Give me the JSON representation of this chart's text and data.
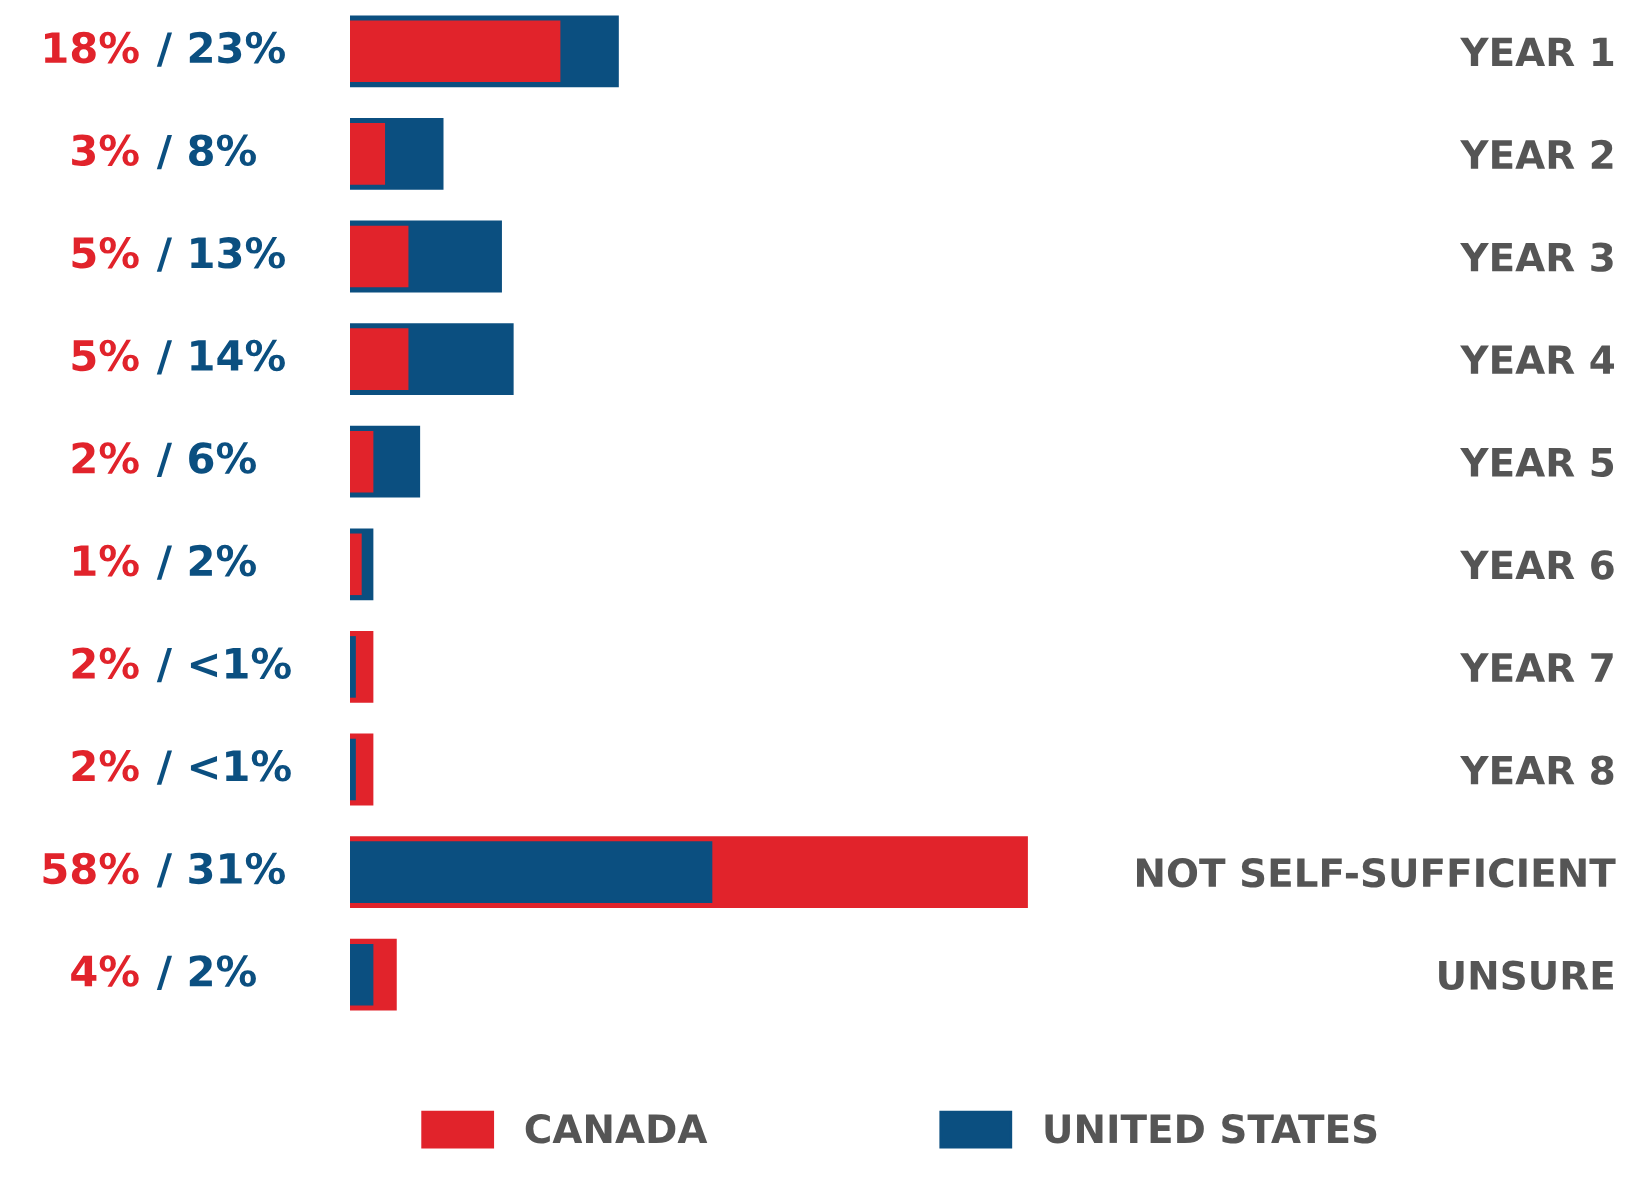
{
  "chart_data": {
    "type": "bar",
    "orientation": "horizontal",
    "stacked": false,
    "categories": [
      "YEAR 1",
      "YEAR 2",
      "YEAR 3",
      "YEAR 4",
      "YEAR 5",
      "YEAR 6",
      "YEAR 7",
      "YEAR 8",
      "NOT SELF-SUFFICIENT",
      "UNSURE"
    ],
    "series": [
      {
        "name": "CANADA",
        "color": "#e1232b",
        "values": [
          18,
          3,
          5,
          5,
          2,
          1,
          2,
          2,
          58,
          4
        ],
        "value_labels": [
          "18%",
          "3%",
          "5%",
          "5%",
          "2%",
          "1%",
          "2%",
          "2%",
          "58%",
          "4%"
        ]
      },
      {
        "name": "UNITED STATES",
        "color": "#0b4f80",
        "values": [
          23,
          8,
          13,
          14,
          6,
          2,
          0.5,
          0.5,
          31,
          2
        ],
        "value_labels": [
          "/ 23%",
          "/ 8%",
          "/ 13%",
          "/ 14%",
          "/ 6%",
          "/ 2%",
          "/ <1%",
          "/ <1%",
          "/ 31%",
          "/ 2%"
        ]
      }
    ],
    "tick_labels": "y",
    "grid": false,
    "legend": "bottom"
  }
}
